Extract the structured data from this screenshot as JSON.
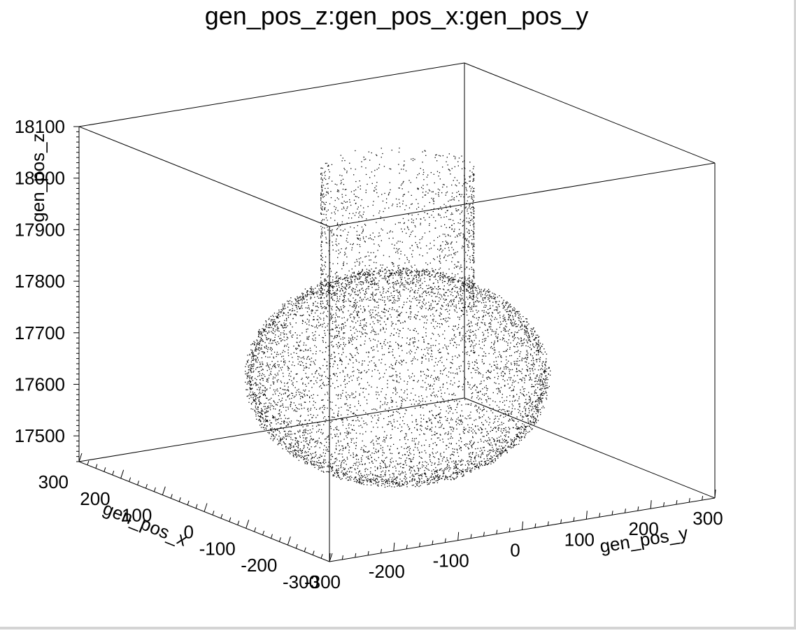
{
  "chart_data": {
    "type": "scatter",
    "title": "gen_pos_z:gen_pos_x:gen_pos_y",
    "axis_labels": {
      "x": "gen_pos_x",
      "y": "gen_pos_y",
      "z": "gen_pos_z"
    },
    "ranges": {
      "x": [
        -300,
        300
      ],
      "y": [
        -300,
        300
      ],
      "z": [
        17450,
        18100
      ]
    },
    "ticks": {
      "x": [
        "300",
        "200",
        "100",
        "0",
        "-100",
        "-200",
        "-300"
      ],
      "y": [
        "-300",
        "-200",
        "-100",
        "0",
        "100",
        "200",
        "300"
      ],
      "z": [
        "18100",
        "18000",
        "17900",
        "17800",
        "17700",
        "17600",
        "17500"
      ]
    },
    "series": [
      {
        "shape": "sphere",
        "center": {
          "x": 0,
          "y": 0,
          "z": 17650
        },
        "radius": 200,
        "point_count": 6500
      },
      {
        "shape": "cylinder",
        "axis": {
          "x": 0,
          "y": 0
        },
        "radius": 100,
        "z_range": [
          17790,
          18060
        ],
        "point_count": 1400
      }
    ],
    "grid": false,
    "marker_color": "#000000"
  }
}
